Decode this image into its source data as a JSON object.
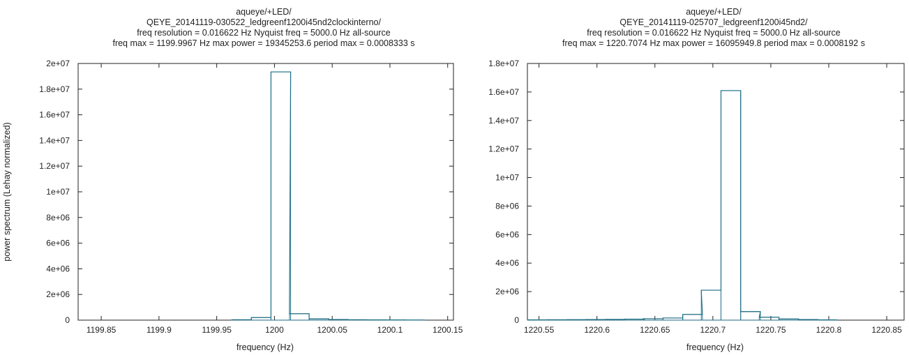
{
  "chart_data": [
    {
      "type": "line",
      "step": true,
      "title_lines": [
        "aqueye/+LED/",
        "QEYE_20141119-030522_ledgreenf1200i45nd2clockinterno/",
        "freq resolution = 0.016622 Hz    Nyquist freq = 5000.0 Hz    all-source",
        "freq max = 1199.9967 Hz    max power = 19345253.6    period max = 0.0008333 s"
      ],
      "xlabel": "frequency (Hz)",
      "ylabel": "power spectrum (Lehay normalized)",
      "xlim": [
        1199.83,
        1200.155
      ],
      "ylim": [
        0,
        20000000
      ],
      "xticks": [
        1199.85,
        1199.9,
        1199.95,
        1200,
        1200.05,
        1200.1,
        1200.15
      ],
      "xtick_labels": [
        "1199.85",
        "1199.9",
        "1199.95",
        "1200",
        "1200.05",
        "1200.1",
        "1200.15"
      ],
      "yticks": [
        0,
        2000000,
        4000000,
        6000000,
        8000000,
        10000000,
        12000000,
        14000000,
        16000000,
        18000000,
        20000000
      ],
      "ytick_labels": [
        "0",
        "2e+06",
        "4e+06",
        "6e+06",
        "8e+06",
        "1e+07",
        "1.2e+07",
        "1.4e+07",
        "1.6e+07",
        "1.8e+07",
        "2e+07"
      ],
      "color": "#1f6f86",
      "series": [
        {
          "x": [
            1199.963,
            1199.98,
            1199.997,
            1200.013,
            1200.03,
            1200.047,
            1200.063,
            1200.08,
            1200.097,
            1200.113
          ],
          "y": [
            30000,
            200000,
            19345253.6,
            500000,
            100000,
            50000,
            30000,
            20000,
            15000,
            10000
          ]
        }
      ]
    },
    {
      "type": "line",
      "step": true,
      "title_lines": [
        "aqueye/+LED/",
        "QEYE_20141119-025707_ledgreenf1200i45nd2/",
        "freq resolution = 0.016622 Hz    Nyquist freq = 5000.0 Hz    all-source",
        "freq max = 1220.7074 Hz    max power = 16095949.8    period max = 0.0008192 s"
      ],
      "xlabel": "frequency (Hz)",
      "ylabel": "",
      "xlim": [
        1220.54,
        1220.865
      ],
      "ylim": [
        0,
        18000000
      ],
      "xticks": [
        1220.55,
        1220.6,
        1220.65,
        1220.7,
        1220.75,
        1220.8,
        1220.85
      ],
      "xtick_labels": [
        "1220.55",
        "1220.6",
        "1220.65",
        "1220.7",
        "1220.75",
        "1220.8",
        "1220.85"
      ],
      "yticks": [
        0,
        2000000,
        4000000,
        6000000,
        8000000,
        10000000,
        12000000,
        14000000,
        16000000,
        18000000
      ],
      "ytick_labels": [
        "0",
        "2e+06",
        "4e+06",
        "6e+06",
        "8e+06",
        "1e+07",
        "1.2e+07",
        "1.4e+07",
        "1.6e+07",
        "1.8e+07"
      ],
      "color": "#1f6f86",
      "series": [
        {
          "x": [
            1220.54,
            1220.557,
            1220.574,
            1220.59,
            1220.607,
            1220.624,
            1220.64,
            1220.657,
            1220.674,
            1220.69,
            1220.707,
            1220.724,
            1220.74,
            1220.757,
            1220.774,
            1220.79
          ],
          "y": [
            20000,
            25000,
            30000,
            40000,
            50000,
            70000,
            100000,
            150000,
            400000,
            2100000,
            16095949.8,
            600000,
            200000,
            80000,
            40000,
            20000
          ]
        }
      ]
    }
  ]
}
